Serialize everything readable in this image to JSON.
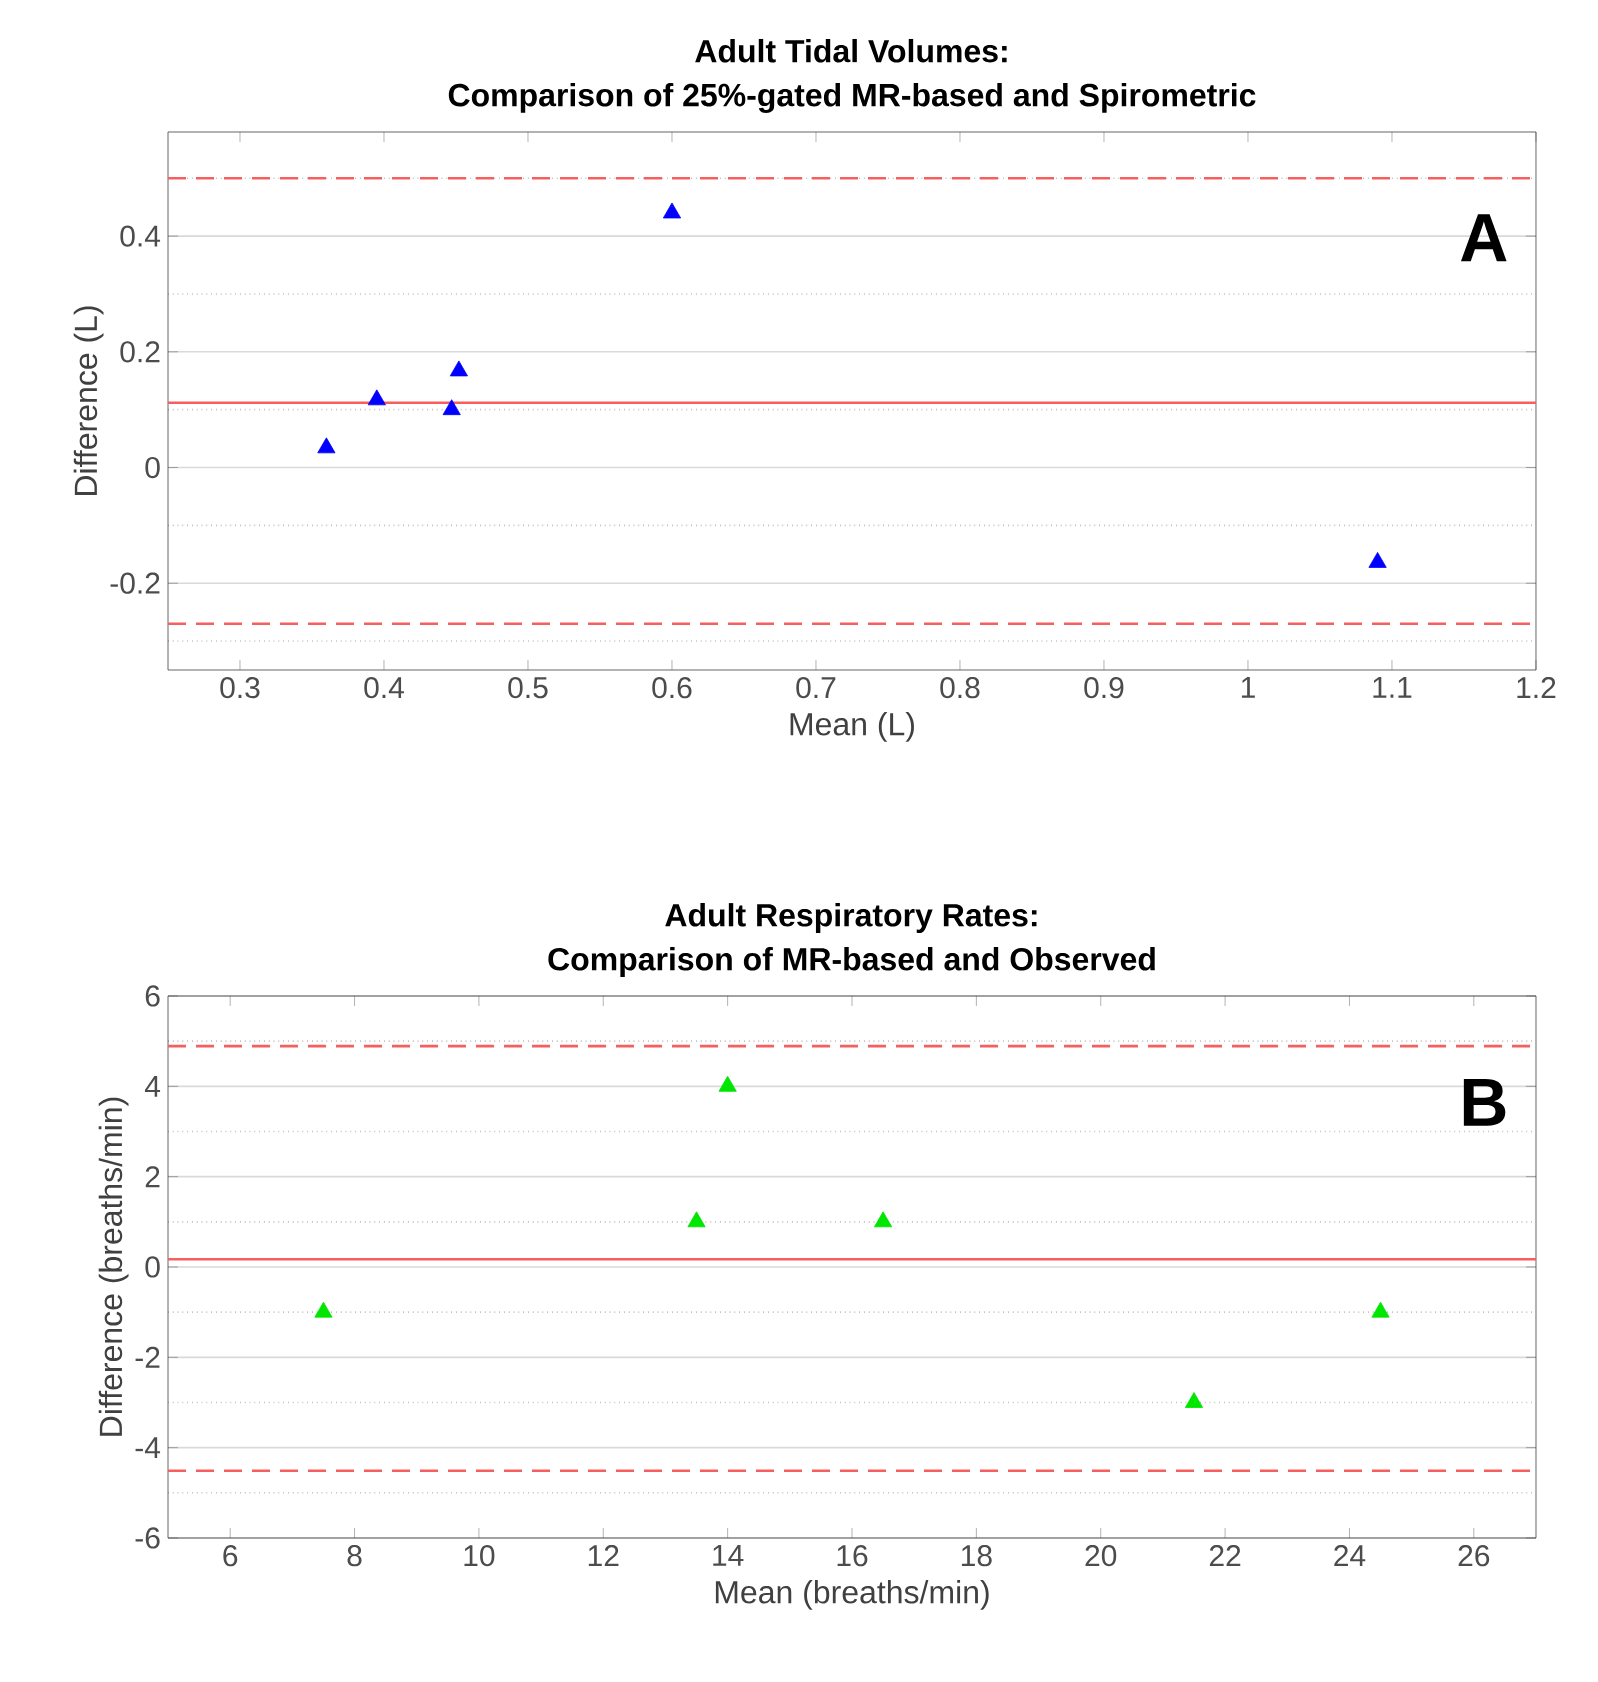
{
  "chart_data": [
    {
      "type": "scatter",
      "title": "Adult Tidal Volumes:",
      "subtitle": "Comparison of 25%-gated MR-based and Spirometric",
      "xlabel": "Mean (L)",
      "ylabel": "Difference (L)",
      "series": [
        {
          "color": "#0000ff",
          "x": [
            0.36,
            0.395,
            0.447,
            0.452,
            0.6,
            1.09
          ],
          "values": [
            0.034,
            0.117,
            0.1,
            0.167,
            0.44,
            -0.164
          ]
        }
      ],
      "xlim": [
        0.25,
        1.2
      ],
      "xticks": [
        0.3,
        0.4,
        0.5,
        0.6,
        0.7,
        0.8,
        0.9,
        1,
        1.1,
        1.2
      ],
      "ylim": [
        -0.35,
        0.58
      ],
      "yticks": [
        {
          "value": -0.3,
          "label": null
        },
        -0.2,
        {
          "value": -0.1,
          "label": null
        },
        0,
        {
          "value": 0.1,
          "label": null
        },
        0.2,
        {
          "value": 0.3,
          "label": null
        },
        0.4,
        {
          "value": 0.5,
          "label": null
        }
      ],
      "ref_lines": [
        {
          "axis": "y",
          "value": 0.5,
          "color": "#f55f5f",
          "line_style": "dashed"
        },
        {
          "axis": "y",
          "value": 0.112,
          "color": "#f55f5f",
          "line_style": "solid"
        },
        {
          "axis": "y",
          "value": -0.27,
          "color": "#f55f5f",
          "line_style": "dashed"
        }
      ],
      "annotations": [
        "A"
      ],
      "grid": "y",
      "marker": "triangle"
    },
    {
      "type": "scatter",
      "title": "Adult Respiratory Rates:",
      "subtitle": "Comparison of MR-based and Observed",
      "xlabel": "Mean (breaths/min)",
      "ylabel": "Difference (breaths/min)",
      "series": [
        {
          "color": "#00e600",
          "x": [
            7.5,
            13.5,
            14,
            16.5,
            21.5,
            24.5
          ],
          "values": [
            -1,
            1,
            4,
            1,
            -3,
            -1
          ]
        }
      ],
      "xlim": [
        5,
        27
      ],
      "xticks": [
        6,
        8,
        10,
        12,
        14,
        16,
        18,
        20,
        22,
        24,
        26
      ],
      "ylim": [
        -6,
        6
      ],
      "yticks": [
        -6,
        {
          "value": -5,
          "label": null
        },
        -4,
        {
          "value": -3,
          "label": null
        },
        -2,
        {
          "value": -1,
          "label": null
        },
        0,
        {
          "value": 1,
          "label": null
        },
        2,
        {
          "value": 3,
          "label": null
        },
        4,
        {
          "value": 5,
          "label": null
        },
        6
      ],
      "ref_lines": [
        {
          "axis": "y",
          "value": 4.89,
          "color": "#f55f5f",
          "line_style": "dashed"
        },
        {
          "axis": "y",
          "value": 0.17,
          "color": "#f55f5f",
          "line_style": "solid"
        },
        {
          "axis": "y",
          "value": -4.51,
          "color": "#f55f5f",
          "line_style": "dashed"
        }
      ],
      "annotations": [
        "B"
      ],
      "grid": "y",
      "marker": "triangle"
    }
  ]
}
